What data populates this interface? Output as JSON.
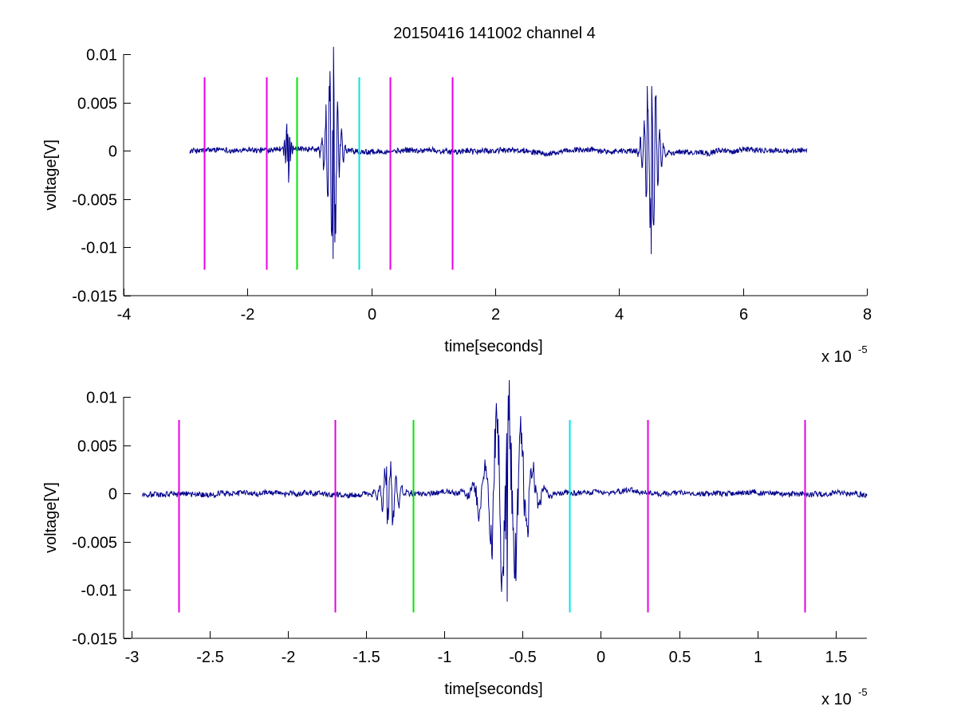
{
  "figure": {
    "title": "20150416 141002 channel 4"
  },
  "chart_data": [
    {
      "type": "line",
      "name": "overview",
      "title": "20150416 141002 channel 4",
      "xlabel": "time[seconds]",
      "ylabel": "voltage[V]",
      "x_scale_exponent_label": "x 10",
      "x_scale_exponent": "-5",
      "xlim": [
        -4,
        8
      ],
      "ylim": [
        -0.015,
        0.01
      ],
      "xticks": [
        -4,
        -2,
        0,
        2,
        4,
        6,
        8
      ],
      "xtick_labels": [
        "-4",
        "-2",
        "0",
        "2",
        "4",
        "6",
        "8"
      ],
      "yticks": [
        0.01,
        0.005,
        0,
        -0.005,
        -0.01,
        -0.015
      ],
      "ytick_labels": [
        "0.01",
        "0.005",
        "0",
        "-0.005",
        "-0.01",
        "-0.015"
      ],
      "signal_color": "#00008b",
      "signal_range": [
        -2.93,
        7.03
      ],
      "bursts": [
        {
          "center": -1.35,
          "width": 0.08,
          "peaks": [
            0.0028,
            -0.0033
          ]
        },
        {
          "center": -0.62,
          "width": 0.18,
          "peaks": [
            0.0067,
            -0.0112,
            0.0037
          ]
        },
        {
          "center": 4.52,
          "width": 0.18,
          "peaks": [
            0.0067,
            -0.0107,
            0.0055
          ]
        }
      ],
      "marker_lines": [
        {
          "x": -2.7,
          "color": "#e600e6",
          "y_range": [
            -0.0123,
            0.0076
          ]
        },
        {
          "x": -1.7,
          "color": "#e600e6",
          "y_range": [
            -0.0123,
            0.0076
          ]
        },
        {
          "x": -1.2,
          "color": "#00e600",
          "y_range": [
            -0.0123,
            0.0076
          ]
        },
        {
          "x": -0.2,
          "color": "#00e6e6",
          "y_range": [
            -0.0123,
            0.0076
          ]
        },
        {
          "x": 0.3,
          "color": "#e600e6",
          "y_range": [
            -0.0123,
            0.0076
          ]
        },
        {
          "x": 1.3,
          "color": "#e600e6",
          "y_range": [
            -0.0123,
            0.0076
          ]
        }
      ]
    },
    {
      "type": "line",
      "name": "zoomed",
      "xlabel": "time[seconds]",
      "ylabel": "voltage[V]",
      "x_scale_exponent_label": "x 10",
      "x_scale_exponent": "-5",
      "xlim": [
        -3.05,
        1.7
      ],
      "ylim": [
        -0.015,
        0.01
      ],
      "xticks": [
        -3,
        -2.5,
        -2,
        -1.5,
        -1,
        -0.5,
        0,
        0.5,
        1,
        1.5
      ],
      "xtick_labels": [
        "-3",
        "-2.5",
        "-2",
        "-1.5",
        "-1",
        "-0.5",
        "0",
        "0.5",
        "1",
        "1.5"
      ],
      "yticks": [
        0.01,
        0.005,
        0,
        -0.005,
        -0.01,
        -0.015
      ],
      "ytick_labels": [
        "0.01",
        "0.005",
        "0",
        "-0.005",
        "-0.01",
        "-0.015"
      ],
      "signal_color": "#00008b",
      "signal_range": [
        -2.93,
        1.7
      ],
      "bursts": [
        {
          "center": -1.35,
          "width": 0.1,
          "peaks": [
            0.0028,
            -0.0033
          ]
        },
        {
          "center": -0.6,
          "width": 0.22,
          "peaks": [
            0.0067,
            -0.0112,
            0.0037
          ]
        }
      ],
      "marker_lines": [
        {
          "x": -2.7,
          "color": "#e600e6",
          "y_range": [
            -0.0123,
            0.0076
          ]
        },
        {
          "x": -1.7,
          "color": "#e600e6",
          "y_range": [
            -0.0123,
            0.0076
          ]
        },
        {
          "x": -1.2,
          "color": "#00e600",
          "y_range": [
            -0.0123,
            0.0076
          ]
        },
        {
          "x": -0.2,
          "color": "#00e6e6",
          "y_range": [
            -0.0123,
            0.0076
          ]
        },
        {
          "x": 0.3,
          "color": "#e600e6",
          "y_range": [
            -0.0123,
            0.0076
          ]
        },
        {
          "x": 1.3,
          "color": "#e600e6",
          "y_range": [
            -0.0123,
            0.0076
          ]
        }
      ]
    }
  ]
}
